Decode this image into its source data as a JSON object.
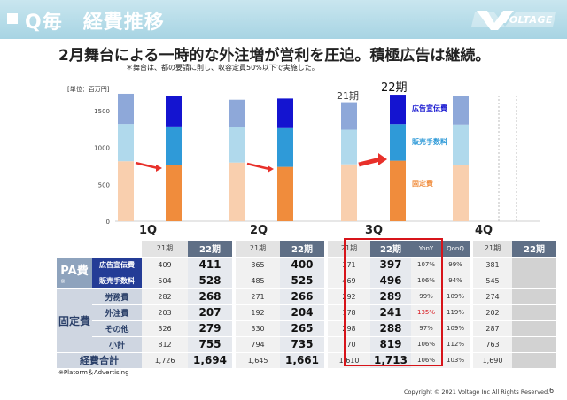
{
  "header": {
    "title": "Q毎　経費推移",
    "logo_text": "VOLTAGE"
  },
  "headline": "2月舞台による一時的な外注増が営利を圧迫。積極広告は継続。",
  "subnote": "＊舞台は、都の要請に則し、収容定員50%以下で実施した。",
  "unit_label": "[単位：百万円]",
  "chart_data": {
    "type": "bar",
    "stacked": true,
    "categories": [
      "1Q",
      "2Q",
      "3Q",
      "4Q"
    ],
    "period_labels": {
      "prior": "21期",
      "current": "22期"
    },
    "yticks": [
      0,
      500,
      1000,
      1500
    ],
    "ylim": [
      0,
      1800
    ],
    "grid": false,
    "legend_position": "right",
    "series": [
      {
        "name": "固定費",
        "color_21": "#f9cfae",
        "color_22": "#f08c3c",
        "values_21": [
          812,
          794,
          770,
          763
        ],
        "values_22": [
          755,
          735,
          819,
          null
        ]
      },
      {
        "name": "販売手数料",
        "color_21": "#b0d9ec",
        "color_22": "#2f9ad8",
        "values_21": [
          504,
          485,
          469,
          545
        ],
        "values_22": [
          528,
          525,
          496,
          null
        ]
      },
      {
        "name": "広告宣伝費",
        "color_21": "#8ea8d9",
        "color_22": "#1414d0",
        "values_21": [
          409,
          365,
          371,
          381
        ],
        "values_22": [
          411,
          400,
          397,
          null
        ]
      }
    ],
    "arrow_color": "#e8302a"
  },
  "table": {
    "quarters": [
      {
        "h21": "21期",
        "h22": "22期"
      },
      {
        "h21": "21期",
        "h22": "22期"
      },
      {
        "h21": "21期",
        "h22": "22期",
        "hyoy": "YonY",
        "hqoq": "QonQ"
      },
      {
        "h21": "21期",
        "h22": "22期"
      }
    ],
    "groups": {
      "pa": "PA費",
      "pa_note": "※",
      "fixed": "固定費",
      "total": "経費合計"
    },
    "rows": [
      {
        "label": "広告宣伝費",
        "q1": [
          "409",
          "411"
        ],
        "q2": [
          "365",
          "400"
        ],
        "q3": [
          "371",
          "397",
          "107%",
          "99%"
        ],
        "q4": [
          "381",
          ""
        ]
      },
      {
        "label": "販売手数料",
        "q1": [
          "504",
          "528"
        ],
        "q2": [
          "485",
          "525"
        ],
        "q3": [
          "469",
          "496",
          "106%",
          "94%"
        ],
        "q4": [
          "545",
          ""
        ]
      },
      {
        "label": "労務費",
        "q1": [
          "282",
          "268"
        ],
        "q2": [
          "271",
          "266"
        ],
        "q3": [
          "292",
          "289",
          "99%",
          "109%"
        ],
        "q4": [
          "274",
          ""
        ]
      },
      {
        "label": "外注費",
        "q1": [
          "203",
          "207"
        ],
        "q2": [
          "192",
          "204"
        ],
        "q3": [
          "178",
          "241",
          "135%",
          "119%"
        ],
        "q4": [
          "202",
          ""
        ]
      },
      {
        "label": "その他",
        "q1": [
          "326",
          "279"
        ],
        "q2": [
          "330",
          "265"
        ],
        "q3": [
          "298",
          "288",
          "97%",
          "109%"
        ],
        "q4": [
          "287",
          ""
        ]
      },
      {
        "label": "小計",
        "q1": [
          "812",
          "755"
        ],
        "q2": [
          "794",
          "735"
        ],
        "q3": [
          "770",
          "819",
          "106%",
          "112%"
        ],
        "q4": [
          "763",
          ""
        ]
      },
      {
        "label": "",
        "q1": [
          "1,726",
          "1,694"
        ],
        "q2": [
          "1,645",
          "1,661"
        ],
        "q3": [
          "1,610",
          "1,713",
          "106%",
          "103%"
        ],
        "q4": [
          "1,690",
          ""
        ]
      }
    ]
  },
  "footnote": "※Platorm＆Advertising",
  "copyright": "Copyright © 2021 Voltage Inc  All Rights Reserved.",
  "page_number": "6"
}
